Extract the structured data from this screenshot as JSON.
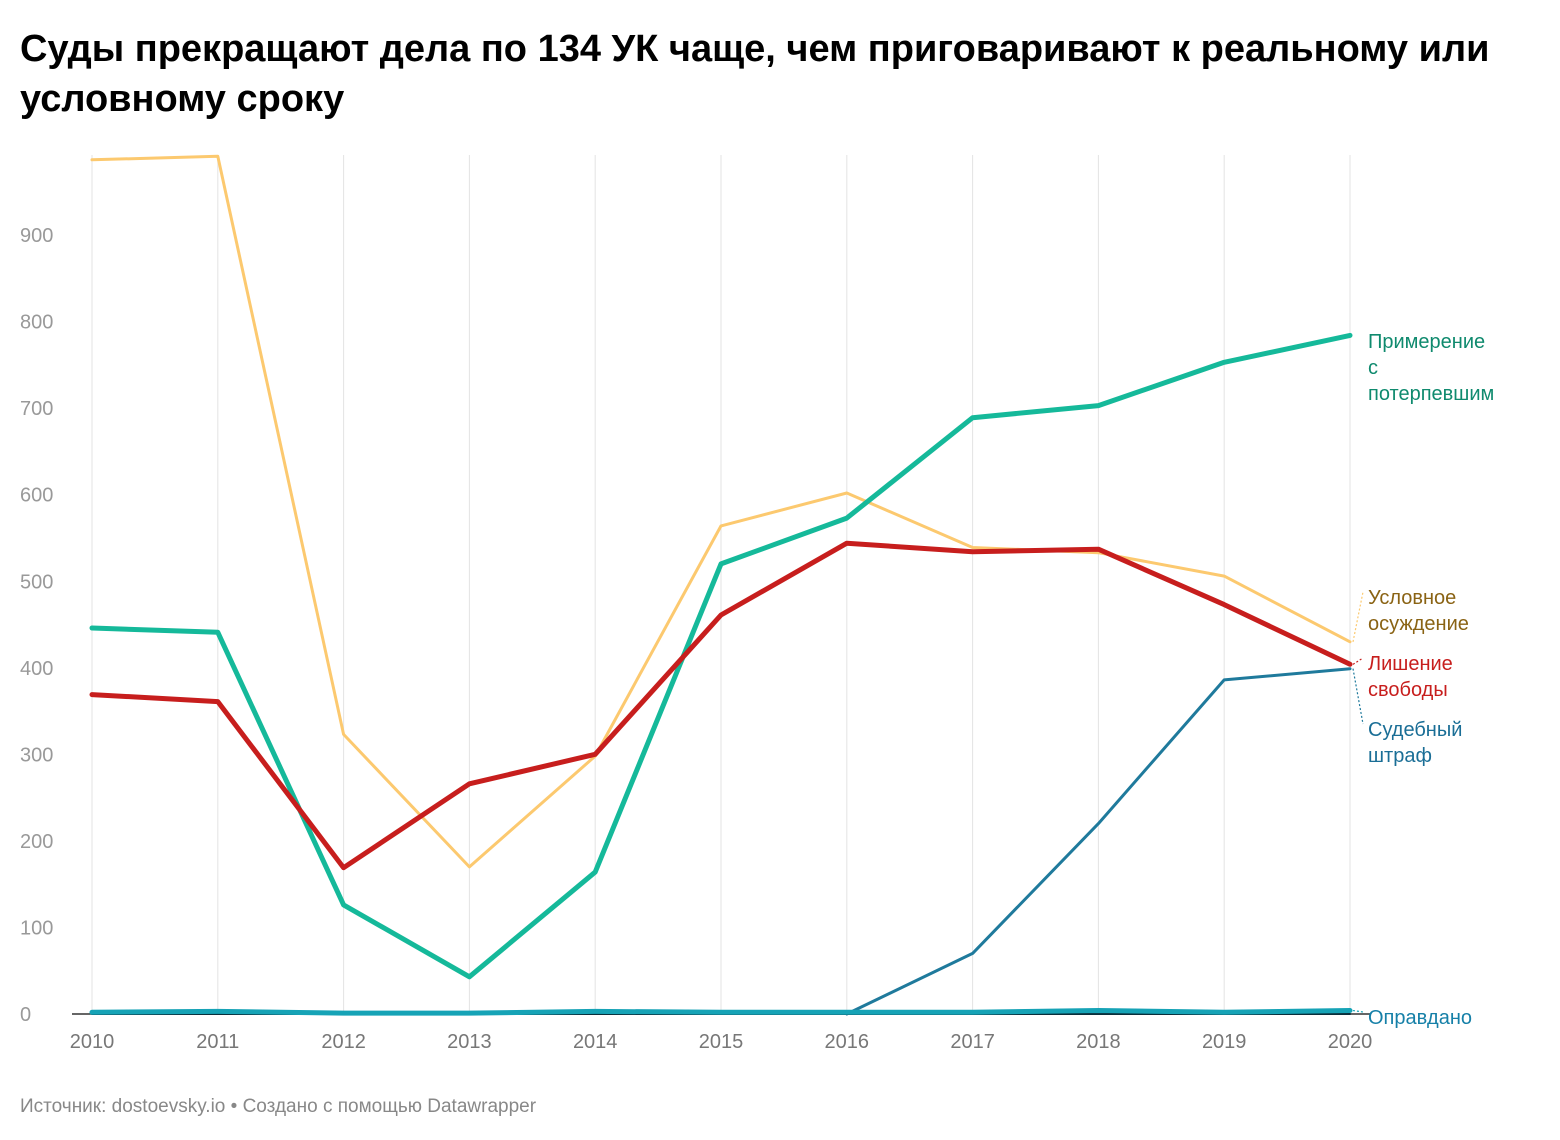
{
  "title": "Суды прекращают дела по 134 УК чаще, чем приговаривают к реальному или условному сроку",
  "footer": "Источник: dostoevsky.io • Создано с помощью Datawrapper",
  "chart_data": {
    "type": "line",
    "title": "Суды прекращают дела по 134 УК чаще, чем приговаривают к реальному или условному сроку",
    "xlabel": "",
    "ylabel": "",
    "x": [
      "2010",
      "2011",
      "2012",
      "2013",
      "2014",
      "2015",
      "2016",
      "2017",
      "2018",
      "2019",
      "2020"
    ],
    "y_ticks": [
      0,
      100,
      200,
      300,
      400,
      500,
      600,
      700,
      800,
      900
    ],
    "ylim": [
      0,
      990
    ],
    "grid": "vertical",
    "legend": "inline-right",
    "series": [
      {
        "name": "Условное осуждение",
        "label_lines": [
          "Условное",
          "осуждение"
        ],
        "color": "#fcc96f",
        "label_color": "#8a6314",
        "width": 3,
        "values": [
          987,
          991,
          323,
          170,
          298,
          564,
          602,
          539,
          533,
          506,
          430
        ]
      },
      {
        "name": "Примерение с потерпевшим",
        "label_lines": [
          "Примерение",
          "с",
          "потерпевшим"
        ],
        "color": "#15b99a",
        "label_color": "#0f8a6e",
        "width": 5,
        "values": [
          446,
          441,
          126,
          43,
          164,
          520,
          573,
          689,
          703,
          753,
          784
        ]
      },
      {
        "name": "Лишение свободы",
        "label_lines": [
          "Лишение",
          "свободы"
        ],
        "color": "#c71e1d",
        "label_color": "#c71e1d",
        "width": 5,
        "values": [
          369,
          361,
          169,
          266,
          300,
          461,
          544,
          534,
          537,
          473,
          404
        ]
      },
      {
        "name": "Судебный штраф",
        "label_lines": [
          "Судебный",
          "штраф"
        ],
        "color": "#1f7a9c",
        "label_color": "#1a6e96",
        "width": 3,
        "values": [
          null,
          null,
          null,
          null,
          null,
          null,
          0,
          70,
          220,
          386,
          399
        ]
      },
      {
        "name": "Оправдано",
        "label_lines": [
          "Оправдано"
        ],
        "color": "#16a3b6",
        "label_color": "#1680a8",
        "width": 5,
        "values": [
          2,
          3,
          1,
          1,
          3,
          2,
          2,
          2,
          4,
          2,
          4
        ]
      },
      {
        "name": "",
        "label_lines": [],
        "color": "#0a2e3a",
        "label_color": "#0a2e3a",
        "width": 2,
        "values": [
          0,
          0,
          0,
          0,
          0,
          0,
          0,
          0,
          0,
          0,
          0
        ]
      }
    ]
  }
}
